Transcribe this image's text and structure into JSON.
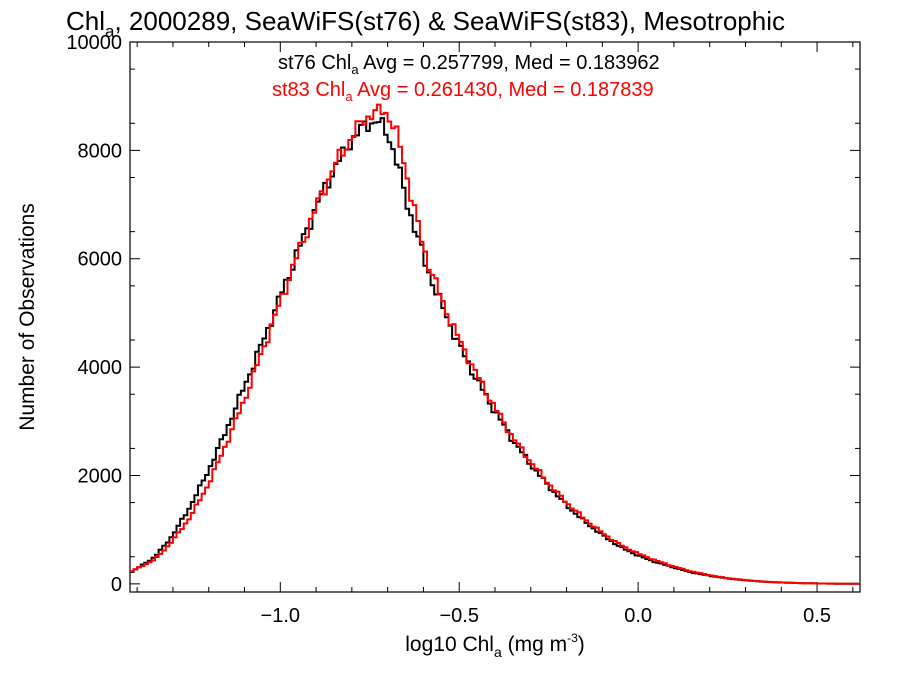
{
  "chart_data": {
    "type": "histogram",
    "title": {
      "pre": "Chl",
      "sub": "a",
      "post": ", 2000289, SeaWiFS(st76) & SeaWiFS(st83), Mesotrophic"
    },
    "xlabel": {
      "pre": "log10 Chl",
      "sub": "a",
      "mid": " (mg m",
      "sup": "-3",
      "post": ")"
    },
    "ylabel": "Number of Observations",
    "xlim": [
      -1.42,
      0.62
    ],
    "ylim": [
      -150,
      10000
    ],
    "xticks": [
      -1.0,
      -0.5,
      0.0,
      0.5
    ],
    "xtick_labels": [
      "−1.0",
      "−0.5",
      "0.0",
      "0.5"
    ],
    "yticks": [
      0,
      2000,
      4000,
      6000,
      8000,
      10000
    ],
    "ytick_labels": [
      "0",
      "2000",
      "4000",
      "6000",
      "8000",
      "10000"
    ],
    "annotations": [
      {
        "pre": "st76 Chl",
        "sub": "a",
        "post": " Avg = 0.257799, Med = 0.183962",
        "color": "#000000"
      },
      {
        "pre": "st83 Chl",
        "sub": "a",
        "post": " Avg = 0.261430, Med = 0.187839",
        "color": "#ff0000"
      }
    ],
    "series": [
      {
        "color": "#000000",
        "x": [
          -1.42,
          -1.35,
          -1.3,
          -1.25,
          -1.2,
          -1.15,
          -1.1,
          -1.05,
          -1.0,
          -0.95,
          -0.9,
          -0.85,
          -0.8,
          -0.77,
          -0.75,
          -0.73,
          -0.71,
          -0.69,
          -0.67,
          -0.65,
          -0.62,
          -0.6,
          -0.55,
          -0.5,
          -0.45,
          -0.4,
          -0.35,
          -0.3,
          -0.25,
          -0.2,
          -0.15,
          -0.1,
          -0.05,
          0.0,
          0.05,
          0.1,
          0.15,
          0.2,
          0.25,
          0.3,
          0.35,
          0.4,
          0.45,
          0.5,
          0.55,
          0.62
        ],
        "y": [
          200,
          500,
          900,
          1450,
          2100,
          2850,
          3650,
          4450,
          5300,
          6150,
          6950,
          7650,
          8200,
          8420,
          8500,
          8560,
          8400,
          8150,
          7700,
          7100,
          6500,
          6000,
          5150,
          4400,
          3750,
          3180,
          2650,
          2200,
          1800,
          1450,
          1150,
          900,
          680,
          520,
          400,
          300,
          210,
          150,
          100,
          65,
          40,
          25,
          15,
          8,
          4,
          2
        ]
      },
      {
        "color": "#ff0000",
        "x": [
          -1.42,
          -1.35,
          -1.3,
          -1.25,
          -1.2,
          -1.15,
          -1.1,
          -1.05,
          -1.0,
          -0.95,
          -0.9,
          -0.85,
          -0.8,
          -0.77,
          -0.75,
          -0.73,
          -0.71,
          -0.69,
          -0.67,
          -0.65,
          -0.62,
          -0.6,
          -0.55,
          -0.5,
          -0.45,
          -0.4,
          -0.35,
          -0.3,
          -0.25,
          -0.2,
          -0.15,
          -0.1,
          -0.05,
          0.0,
          0.05,
          0.1,
          0.15,
          0.2,
          0.25,
          0.3,
          0.35,
          0.4,
          0.45,
          0.5,
          0.55,
          0.62
        ],
        "y": [
          220,
          450,
          800,
          1250,
          1850,
          2600,
          3400,
          4300,
          5200,
          6100,
          6950,
          7700,
          8250,
          8550,
          8650,
          8700,
          8750,
          8550,
          8200,
          7650,
          6750,
          6200,
          5250,
          4500,
          3850,
          3250,
          2700,
          2250,
          1850,
          1500,
          1200,
          940,
          720,
          560,
          430,
          320,
          230,
          160,
          105,
          70,
          42,
          26,
          15,
          8,
          4,
          2
        ]
      }
    ]
  }
}
